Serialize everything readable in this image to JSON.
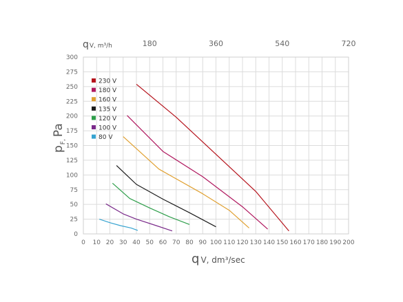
{
  "chart_data": {
    "type": "line",
    "xlabel_main": "q",
    "xlabel_sub": "V, dm³/sec",
    "ylabel_main": "p",
    "ylabel_sub": "F,",
    "ylabel_unit": "Pa",
    "top_axis_label_main": "q",
    "top_axis_label_sub": "V, m³/h",
    "xlim": [
      0,
      200
    ],
    "ylim": [
      0,
      300
    ],
    "x_ticks": [
      0,
      10,
      20,
      30,
      40,
      50,
      60,
      70,
      80,
      90,
      100,
      110,
      120,
      130,
      140,
      150,
      160,
      170,
      180,
      190,
      200
    ],
    "y_ticks": [
      0,
      25,
      50,
      75,
      100,
      125,
      150,
      175,
      200,
      225,
      250,
      275,
      300
    ],
    "top_ticks": [
      {
        "label": "180",
        "x": 50
      },
      {
        "label": "360",
        "x": 100
      },
      {
        "label": "540",
        "x": 150
      },
      {
        "label": "720",
        "x": 200
      }
    ],
    "grid": true,
    "legend_position": "top-left",
    "series": [
      {
        "name": "230 V",
        "color": "#b5121b",
        "points": [
          [
            40,
            254
          ],
          [
            70,
            198
          ],
          [
            100,
            135
          ],
          [
            130,
            72
          ],
          [
            155,
            5
          ]
        ]
      },
      {
        "name": "180 V",
        "color": "#b0185f",
        "points": [
          [
            33,
            201
          ],
          [
            60,
            140
          ],
          [
            90,
            97
          ],
          [
            120,
            46
          ],
          [
            139,
            8
          ]
        ]
      },
      {
        "name": "160 V",
        "color": "#e0a030",
        "points": [
          [
            30,
            165
          ],
          [
            57,
            110
          ],
          [
            90,
            68
          ],
          [
            110,
            40
          ],
          [
            125,
            10
          ]
        ]
      },
      {
        "name": "135 V",
        "color": "#1a1a1a",
        "points": [
          [
            25,
            116
          ],
          [
            40,
            84
          ],
          [
            60,
            59
          ],
          [
            80,
            36
          ],
          [
            100,
            12
          ]
        ]
      },
      {
        "name": "120 V",
        "color": "#2e9e4a",
        "points": [
          [
            22,
            86
          ],
          [
            35,
            60
          ],
          [
            50,
            44
          ],
          [
            65,
            29
          ],
          [
            80,
            16
          ]
        ]
      },
      {
        "name": "100 V",
        "color": "#7a2a8a",
        "points": [
          [
            17,
            51
          ],
          [
            30,
            34
          ],
          [
            40,
            25
          ],
          [
            55,
            14
          ],
          [
            67,
            5
          ]
        ]
      },
      {
        "name": "80 V",
        "color": "#36a3d0",
        "points": [
          [
            12,
            25
          ],
          [
            20,
            19
          ],
          [
            28,
            14
          ],
          [
            36,
            10
          ],
          [
            41,
            6
          ]
        ]
      }
    ]
  }
}
